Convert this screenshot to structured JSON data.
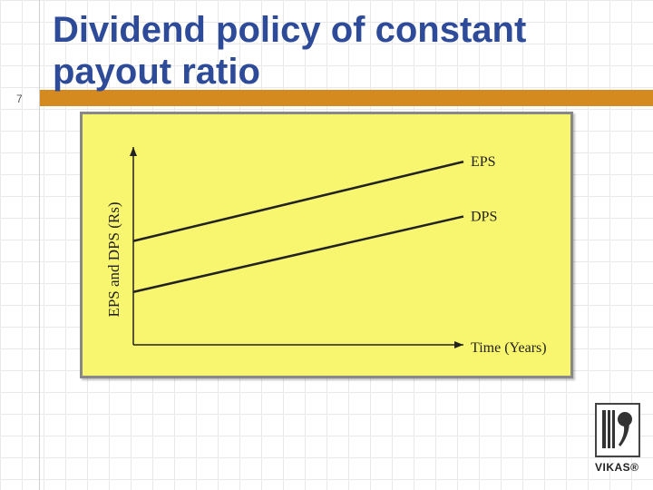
{
  "slide": {
    "number": "7",
    "title": "Dividend policy of constant payout ratio"
  },
  "chart_data": {
    "type": "line",
    "title": "",
    "xlabel": "Time (Years)",
    "ylabel": "EPS and DPS (Rs)",
    "x": [
      0,
      1
    ],
    "series": [
      {
        "name": "EPS",
        "values": [
          0.55,
          0.97
        ]
      },
      {
        "name": "DPS",
        "values": [
          0.28,
          0.68
        ]
      }
    ],
    "xlim": [
      0,
      1
    ],
    "ylim": [
      0,
      1
    ],
    "grid": false,
    "legend": "none (series labelled at line ends)",
    "background_color": "#f8f56e",
    "line_color": "#222222"
  },
  "logo": {
    "text": "VIKAS®"
  },
  "colors": {
    "title": "#2d4b98",
    "accent_bar": "#d58a1f"
  }
}
